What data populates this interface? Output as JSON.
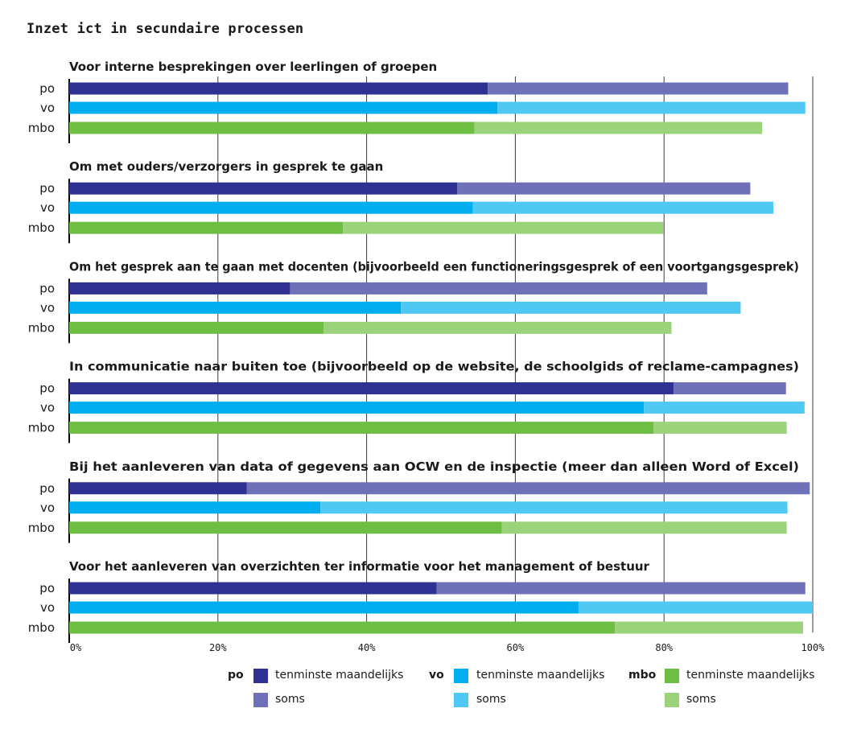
{
  "title": "Inzet ict in secundaire processen",
  "colors": {
    "po_monthly": "#2e3192",
    "po_sometimes": "#6e71b8",
    "vo_monthly": "#00aeef",
    "vo_sometimes": "#4fc9f4",
    "mbo_monthly": "#6fbe44",
    "mbo_sometimes": "#9bd37a",
    "grid": "#3a3a3a",
    "text": "#1a1a1a"
  },
  "legend": {
    "groups": [
      {
        "key": "po",
        "monthly_label": "tenminste maandelijks",
        "sometimes_label": "soms"
      },
      {
        "key": "vo",
        "monthly_label": "tenminste maandelijks",
        "sometimes_label": "soms"
      },
      {
        "key": "mbo",
        "monthly_label": "tenminste maandelijks",
        "sometimes_label": "soms"
      }
    ]
  },
  "chart_data": {
    "type": "bar",
    "orientation": "horizontal",
    "stacked": true,
    "title": "Inzet ict in secundaire processen",
    "xlim": [
      0,
      100
    ],
    "x_ticks": [
      "0%",
      "20%",
      "40%",
      "60%",
      "80%",
      "100%"
    ],
    "grid": true,
    "legend_position": "bottom",
    "row_labels": [
      "po",
      "vo",
      "mbo"
    ],
    "series_names": [
      "tenminste maandelijks",
      "soms"
    ],
    "groups": [
      {
        "label": "Voor interne besprekingen over leerlingen of groepen",
        "monthly": [
          56.3,
          57.6,
          54.5
        ],
        "sometimes": [
          40.4,
          41.4,
          38.7
        ]
      },
      {
        "label": "Om met ouders/verzorgers in gesprek te gaan",
        "monthly": [
          52.2,
          54.3,
          36.8
        ],
        "sometimes": [
          39.4,
          40.4,
          43.1
        ]
      },
      {
        "label": "Om het gesprek aan te gaan met docenten (bijvoorbeeld een functioneringsgesprek of een voortgangsgesprek)",
        "monthly": [
          29.7,
          44.6,
          34.2
        ],
        "sometimes": [
          56.1,
          45.7,
          46.8
        ]
      },
      {
        "label": "In communicatie naar buiten toe (bijvoorbeeld op de website, de schoolgids of reclame-campagnes)",
        "monthly": [
          81.3,
          77.3,
          78.6
        ],
        "sometimes": [
          15.1,
          21.6,
          17.9
        ]
      },
      {
        "label": "Bij het aanleveren van data of gegevens aan OCW en de inspectie (meer dan alleen Word of Excel)",
        "monthly": [
          23.9,
          33.8,
          58.2
        ],
        "sometimes": [
          75.7,
          62.8,
          38.3
        ]
      },
      {
        "label": "Voor het aanleveren van overzichten ter informatie voor het management of bestuur",
        "monthly": [
          49.4,
          68.5,
          73.4
        ],
        "sometimes": [
          49.6,
          31.5,
          25.3
        ]
      }
    ]
  }
}
